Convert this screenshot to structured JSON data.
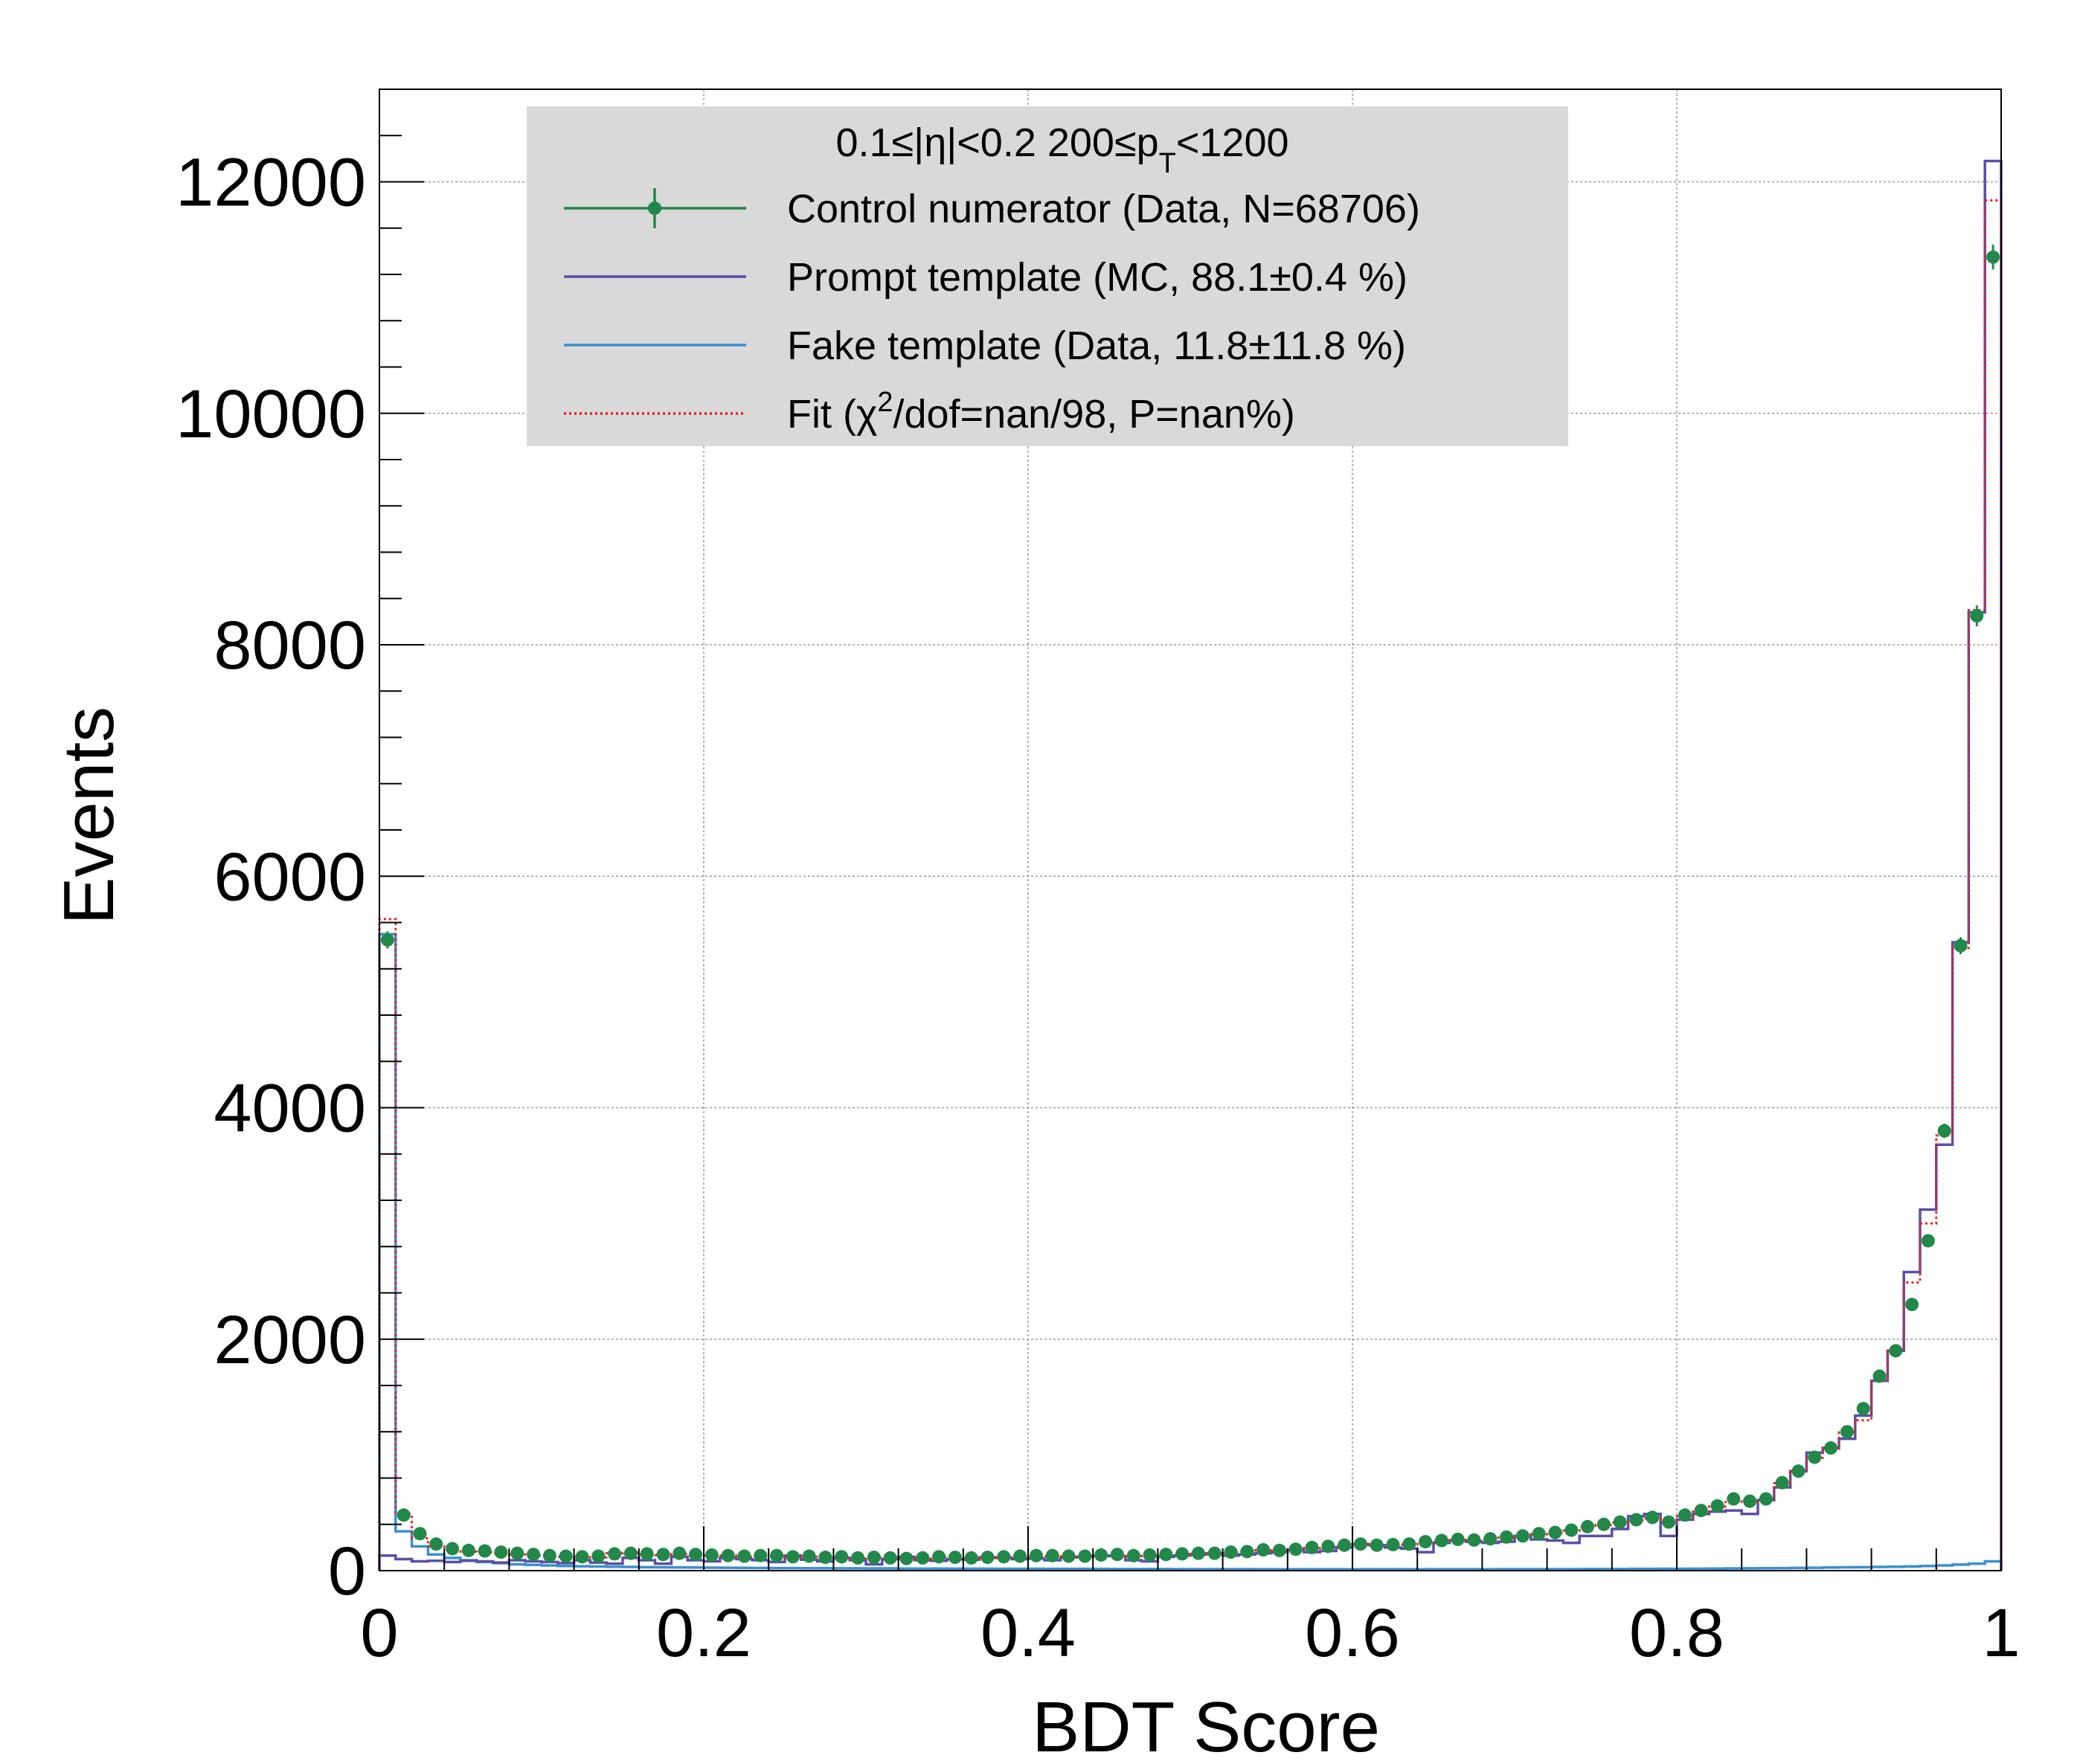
{
  "chart_data": {
    "type": "line",
    "xlabel": "BDT Score",
    "ylabel": "Events",
    "xlim": [
      0,
      1
    ],
    "ylim": [
      0,
      12800
    ],
    "grid": true,
    "legend_position": "top-left",
    "x_ticks": [
      0,
      0.2,
      0.4,
      0.6,
      0.8,
      1
    ],
    "x_tick_labels": [
      "0",
      "0.2",
      "0.4",
      "0.6",
      "0.8",
      "1"
    ],
    "y_ticks": [
      0,
      2000,
      4000,
      6000,
      8000,
      10000,
      12000
    ],
    "y_tick_labels": [
      "0",
      "2000",
      "4000",
      "6000",
      "8000",
      "10000",
      "12000"
    ],
    "bin_width": 0.01,
    "legend": {
      "header_parts": [
        "0.1≤|η|<0.2  200≤p",
        "T",
        "<1200"
      ],
      "entries": [
        {
          "parts": [
            "Control numerator (Data, N=68706)"
          ],
          "color": "#22884a",
          "style": "marker"
        },
        {
          "parts": [
            "Prompt template (MC, 88.1±0.4 %)"
          ],
          "color": "#5b4ea8",
          "style": "line"
        },
        {
          "parts": [
            "Fake template (Data, 11.8±11.8 %)"
          ],
          "color": "#3a8fcf",
          "style": "line"
        },
        {
          "parts": [
            "Fit (χ",
            "2",
            "/dof=nan/98, P=nan%)"
          ],
          "color": "#e8201c",
          "style": "dotted"
        }
      ]
    },
    "series": [
      {
        "name": "Control numerator (Data, N=68706)",
        "color": "#22884a",
        "values": [
          5450,
          480,
          320,
          230,
          190,
          175,
          170,
          160,
          150,
          140,
          130,
          125,
          120,
          125,
          145,
          150,
          145,
          140,
          150,
          140,
          135,
          130,
          125,
          130,
          130,
          120,
          125,
          115,
          120,
          110,
          115,
          110,
          105,
          110,
          120,
          115,
          110,
          115,
          120,
          125,
          130,
          130,
          125,
          125,
          135,
          140,
          130,
          135,
          140,
          145,
          150,
          150,
          160,
          165,
          180,
          175,
          185,
          200,
          210,
          220,
          230,
          220,
          225,
          230,
          250,
          260,
          270,
          265,
          275,
          290,
          300,
          320,
          330,
          350,
          380,
          400,
          420,
          440,
          460,
          420,
          480,
          520,
          560,
          620,
          600,
          620,
          760,
          860,
          980,
          1060,
          1200,
          1400,
          1680,
          1900,
          2300,
          2850,
          3800,
          5400,
          8250,
          11350
        ]
      },
      {
        "name": "Prompt template (MC, 88.1±0.4 %)",
        "color": "#5b4ea8",
        "values": [
          130,
          100,
          80,
          85,
          75,
          85,
          80,
          70,
          90,
          80,
          75,
          65,
          90,
          70,
          60,
          110,
          90,
          60,
          120,
          90,
          80,
          110,
          100,
          90,
          75,
          130,
          95,
          80,
          110,
          90,
          55,
          100,
          120,
          90,
          85,
          100,
          95,
          115,
          110,
          100,
          105,
          90,
          115,
          120,
          130,
          125,
          90,
          80,
          120,
          130,
          140,
          150,
          130,
          140,
          150,
          160,
          180,
          160,
          170,
          200,
          230,
          220,
          200,
          190,
          160,
          240,
          260,
          250,
          240,
          250,
          300,
          270,
          260,
          240,
          300,
          300,
          360,
          470,
          490,
          300,
          440,
          490,
          510,
          520,
          490,
          610,
          720,
          860,
          1020,
          1060,
          1140,
          1340,
          1640,
          1900,
          2580,
          3120,
          3680,
          5430,
          8280,
          12180
        ]
      },
      {
        "name": "Fake template (Data, 11.8±11.8 %)",
        "color": "#3a8fcf",
        "values": [
          5500,
          340,
          210,
          140,
          110,
          90,
          75,
          65,
          55,
          50,
          45,
          40,
          38,
          36,
          34,
          32,
          30,
          29,
          28,
          27,
          26,
          25,
          24,
          23,
          22,
          22,
          21,
          21,
          20,
          20,
          19,
          19,
          18,
          18,
          18,
          17,
          17,
          17,
          16,
          16,
          16,
          15,
          15,
          15,
          15,
          14,
          14,
          14,
          14,
          13,
          13,
          13,
          13,
          13,
          12,
          12,
          12,
          12,
          12,
          12,
          12,
          12,
          12,
          12,
          12,
          12,
          12,
          12,
          12,
          13,
          13,
          13,
          13,
          13,
          14,
          14,
          14,
          15,
          15,
          16,
          16,
          17,
          18,
          19,
          20,
          21,
          22,
          23,
          25,
          27,
          29,
          30,
          32,
          34,
          36,
          40,
          45,
          52,
          60,
          80
        ]
      },
      {
        "name": "Fit (χ2/dof=nan/98, P=nan%)",
        "color": "#e8201c",
        "values": [
          5630,
          490,
          280,
          210,
          185,
          165,
          160,
          150,
          140,
          130,
          125,
          120,
          115,
          115,
          150,
          155,
          140,
          135,
          145,
          135,
          130,
          130,
          120,
          125,
          125,
          115,
          120,
          110,
          115,
          105,
          110,
          105,
          100,
          105,
          115,
          110,
          105,
          110,
          115,
          120,
          125,
          125,
          120,
          120,
          130,
          135,
          125,
          130,
          135,
          140,
          145,
          145,
          155,
          160,
          175,
          170,
          180,
          195,
          205,
          215,
          225,
          215,
          220,
          225,
          245,
          255,
          265,
          260,
          270,
          285,
          295,
          315,
          325,
          345,
          375,
          395,
          415,
          435,
          450,
          415,
          470,
          510,
          555,
          615,
          595,
          615,
          755,
          855,
          975,
          1055,
          1195,
          1300,
          1650,
          1910,
          2490,
          3000,
          3760,
          5380,
          8300,
          11840
        ]
      }
    ]
  }
}
